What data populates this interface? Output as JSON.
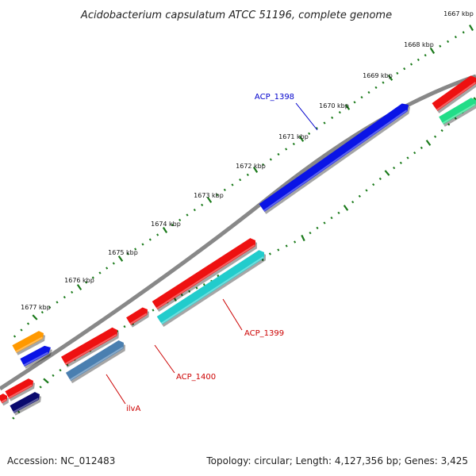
{
  "title": "Acidobacterium capsulatum ATCC 51196, complete genome",
  "accession_label": "Accession: NC_012483",
  "topology_label": "Topology: circular; Length: 4,127,356 bp; Genes: 3,425",
  "ticks": [
    "1667 kbp",
    "1668 kbp",
    "1669 kbp",
    "1670 kbp",
    "1671 kbp",
    "1672 kbp",
    "1673 kbp",
    "1674 kbp",
    "1675 kbp",
    "1676 kbp",
    "1677 kbp"
  ],
  "gene_labels": [
    {
      "name": "ACP_1398",
      "color": "#0000cc"
    },
    {
      "name": "ACP_1399",
      "color": "#cc0000"
    },
    {
      "name": "ACP_1400",
      "color": "#cc0000"
    },
    {
      "name": "ilvA",
      "color": "#cc0000"
    }
  ],
  "colors": {
    "backbone": "#888888",
    "ticks": "#1a7a1a",
    "red": "#ee1111",
    "blue": "#0a14e6",
    "cyan": "#22cccc",
    "orange": "#ff9900",
    "steelblue": "#4a7fb0",
    "navy": "#0a0a6e",
    "green": "#22dd88"
  }
}
